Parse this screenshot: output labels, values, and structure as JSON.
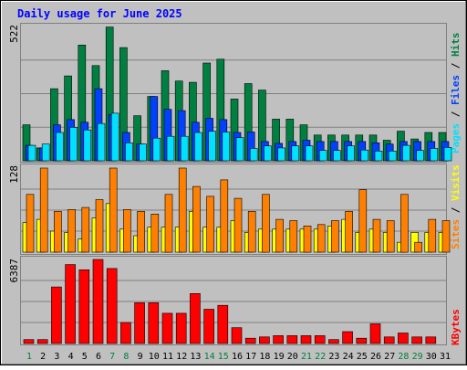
{
  "chart_data": {
    "type": "bar",
    "title": "Daily usage for June 2025",
    "colors": {
      "background": "#C0C0C0",
      "title": "#0000FF",
      "hits": "#008040",
      "files": "#0040FF",
      "pages": "#00E0FF",
      "visits": "#FFFF00",
      "sites": "#FF8000",
      "kbytes": "#FF0000",
      "weekday_label": "#000000",
      "weekend_label": "#008040",
      "grid": "#808080"
    },
    "days": [
      "1",
      "2",
      "3",
      "4",
      "5",
      "6",
      "7",
      "8",
      "9",
      "10",
      "11",
      "12",
      "13",
      "14",
      "15",
      "16",
      "17",
      "18",
      "19",
      "20",
      "21",
      "22",
      "23",
      "24",
      "25",
      "26",
      "27",
      "28",
      "29",
      "30",
      "31"
    ],
    "weekend_days": [
      "1",
      "7",
      "8",
      "14",
      "15",
      "21",
      "22",
      "28",
      "29"
    ],
    "panels": {
      "hits_files_pages": {
        "max_label": "522",
        "ymax": 522,
        "legend": {
          "pages": "Pages",
          "files": "Files",
          "hits": "Hits"
        },
        "series": [
          {
            "name": "Hits",
            "values": [
              140,
              50,
              280,
              330,
              450,
              370,
              520,
              440,
              175,
              250,
              350,
              310,
              305,
              380,
              395,
              240,
              300,
              275,
              162,
              162,
              140,
              100,
              100,
              100,
              100,
              100,
              80,
              115,
              85,
              110,
              110
            ]
          },
          {
            "name": "Files",
            "values": [
              60,
              50,
              140,
              160,
              150,
              280,
              180,
              110,
              65,
              250,
              200,
              195,
              150,
              165,
              160,
              110,
              112,
              75,
              68,
              75,
              80,
              75,
              75,
              75,
              75,
              70,
              65,
              75,
              75,
              75,
              75
            ]
          },
          {
            "name": "Pages",
            "values": [
              60,
              65,
              110,
              130,
              120,
              145,
              185,
              70,
              65,
              88,
              95,
              95,
              110,
              115,
              112,
              90,
              48,
              58,
              50,
              58,
              58,
              40,
              40,
              58,
              42,
              38,
              38,
              60,
              40,
              48,
              52
            ]
          }
        ]
      },
      "visits_sites": {
        "max_label": "128",
        "ymax": 128,
        "legend": {
          "sites": "Sites",
          "visits": "Visits"
        },
        "series": [
          {
            "name": "Visits",
            "values": [
              45,
              50,
              32,
              30,
              20,
              52,
              74,
              35,
              25,
              38,
              38,
              38,
              62,
              38,
              38,
              48,
              30,
              35,
              35,
              35,
              35,
              35,
              40,
              50,
              30,
              35,
              30,
              15,
              30,
              30,
              30
            ]
          },
          {
            "name": "Sites",
            "values": [
              88,
              128,
              62,
              65,
              68,
              80,
              128,
              65,
              62,
              58,
              88,
              128,
              100,
              85,
              110,
              82,
              62,
              88,
              50,
              48,
              40,
              42,
              48,
              62,
              95,
              50,
              48,
              88,
              15,
              50,
              48
            ]
          }
        ]
      },
      "kbytes": {
        "max_label": "6387",
        "ymax": 6387,
        "legend": {
          "kbytes": "KBytes"
        },
        "series": [
          {
            "name": "KBytes",
            "values": [
              300,
              300,
              4300,
              6000,
              5600,
              6387,
              5700,
              1600,
              3100,
              3100,
              2300,
              2300,
              3800,
              2600,
              2900,
              1200,
              400,
              500,
              600,
              600,
              600,
              600,
              300,
              900,
              400,
              1500,
              500,
              800,
              500,
              500,
              0
            ]
          }
        ]
      }
    }
  }
}
